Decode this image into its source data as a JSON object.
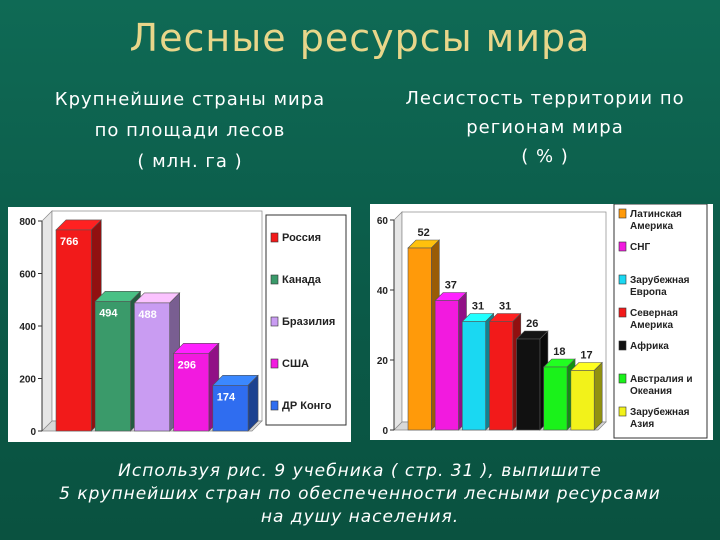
{
  "title": "Лесные ресурсы мира",
  "left_subtitle": "Крупнейшие страны мира\nпо площади лесов\n( млн. га )",
  "right_subtitle": "Лесистость территории по\nрегионам мира\n( % )",
  "caption": "Используя рис. 9 учебника ( стр. 31 ), выпишите\n5 крупнейших стран по обеспеченности лесными ресурсами\nна душу населения.",
  "chart_data": [
    {
      "type": "bar",
      "categories": [
        "Россия",
        "Канада",
        "Бразилия",
        "США",
        "ДР Конго"
      ],
      "values": [
        766,
        494,
        488,
        296,
        174
      ],
      "data_labels": [
        "766",
        "494",
        "488",
        "296",
        "174"
      ],
      "colors": [
        "#f21a1a",
        "#3a9a6a",
        "#c99cf2",
        "#f21adf",
        "#2f6df0"
      ],
      "ylim": [
        0,
        800
      ],
      "yticks": [
        "0",
        "200",
        "400",
        "600",
        "800"
      ],
      "legend": [
        "Россия",
        "Канада",
        "Бразилия",
        "США",
        "ДР Конго"
      ],
      "legend_position": "right",
      "grid": false
    },
    {
      "type": "bar",
      "categories": [
        "Латинская Америка",
        "СНГ",
        "Зарубежная Европа",
        "Северная Америка",
        "Африка",
        "Австралия и Океания",
        "Зарубежная Азия"
      ],
      "values": [
        52,
        37,
        31,
        31,
        26,
        18,
        17
      ],
      "data_labels": [
        "52",
        "37",
        "31",
        "31",
        "26",
        "18",
        "17"
      ],
      "colors": [
        "#ff9a0a",
        "#f21adf",
        "#1ad8f2",
        "#f21a1a",
        "#111111",
        "#1af21a",
        "#f2f21a"
      ],
      "ylim": [
        0,
        60
      ],
      "yticks": [
        "0",
        "20",
        "40",
        "60"
      ],
      "legend": [
        "Латинская Америка",
        "СНГ",
        "Зарубежная Европа",
        "Северная Америка",
        "Африка",
        "Австралия и Океания",
        "Зарубежная Азия"
      ],
      "legend_position": "right",
      "grid": false
    }
  ]
}
